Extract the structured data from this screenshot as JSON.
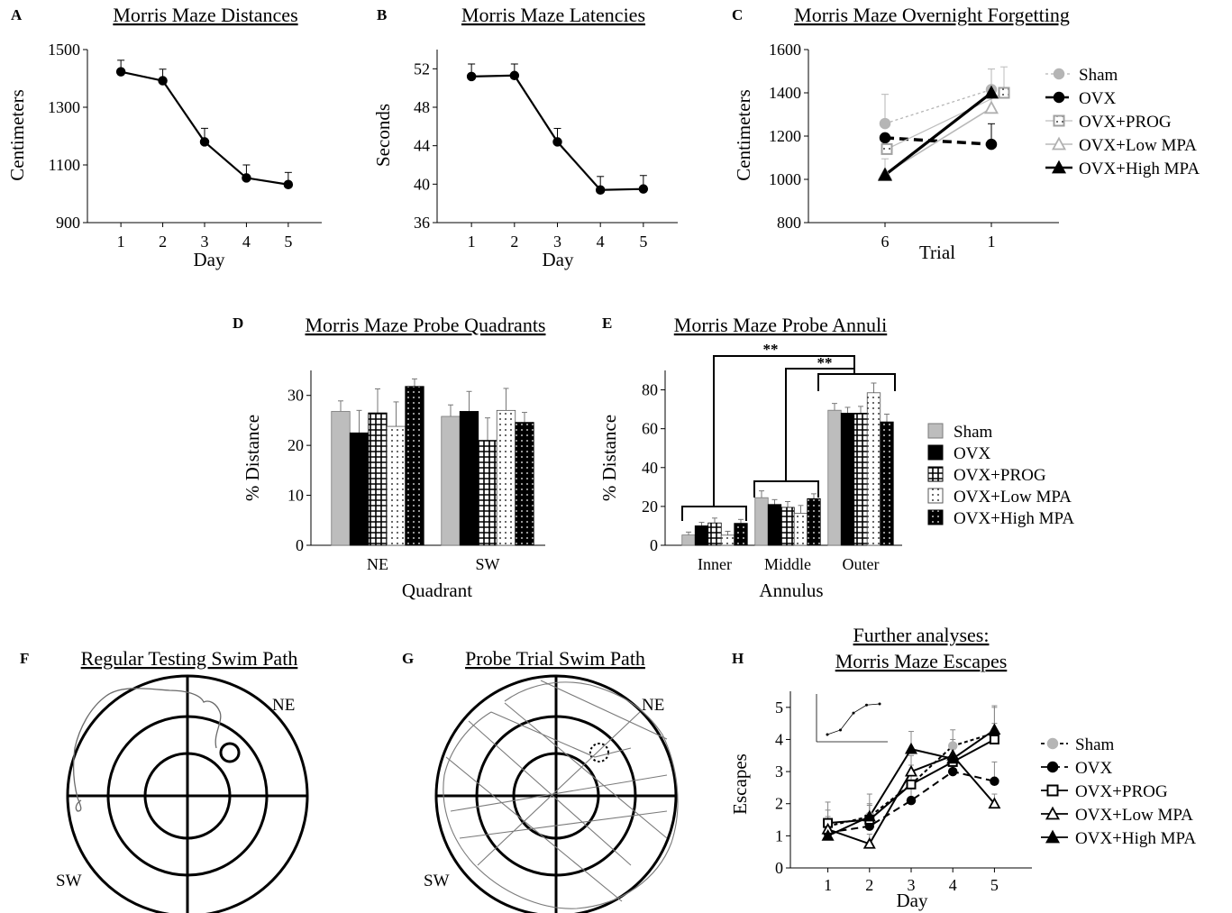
{
  "figure": {
    "colors": {
      "sham": "#b5b5b5",
      "ovx": "#000000",
      "prog": "#ffffff",
      "low": "#ffffff",
      "high": "#000000",
      "grey_line": "#9a9a9a"
    },
    "icons": [
      "filled-circle-marker",
      "open-square-marker",
      "open-triangle-marker",
      "filled-triangle-marker"
    ]
  },
  "chart_data": [
    {
      "id": "A",
      "letter": "A",
      "type": "line",
      "title": "Morris Maze Distances",
      "xlabel": "Day",
      "ylabel": "Centimeters",
      "x": [
        1,
        2,
        3,
        4,
        5
      ],
      "xticks": [
        "1",
        "2",
        "3",
        "4",
        "5"
      ],
      "xlim": [
        0.2,
        5.8
      ],
      "ylim": [
        900,
        1500
      ],
      "yticks": [
        900,
        1100,
        1300,
        1500
      ],
      "series": [
        {
          "values": [
            1423,
            1392,
            1180,
            1055,
            1032
          ],
          "errors": [
            40,
            40,
            47,
            45,
            42
          ]
        }
      ]
    },
    {
      "id": "B",
      "letter": "B",
      "type": "line",
      "title": "Morris Maze Latencies",
      "xlabel": "Day",
      "ylabel": "Seconds",
      "x": [
        1,
        2,
        3,
        4,
        5
      ],
      "xticks": [
        "1",
        "2",
        "3",
        "4",
        "5"
      ],
      "xlim": [
        0.2,
        5.8
      ],
      "ylim": [
        36,
        54
      ],
      "yticks": [
        36,
        40,
        44,
        48,
        52
      ],
      "series": [
        {
          "values": [
            51.2,
            51.3,
            44.4,
            39.4,
            39.5
          ],
          "errors": [
            1.3,
            1.2,
            1.4,
            1.4,
            1.4
          ]
        }
      ]
    },
    {
      "id": "C",
      "letter": "C",
      "type": "line",
      "title": "Morris Maze Overnight Forgetting",
      "xlabel": "Trial",
      "ylabel": "Centimeters",
      "xticks": [
        "6",
        "1"
      ],
      "ylim": [
        800,
        1600
      ],
      "yticks": [
        800,
        1000,
        1200,
        1400,
        1600
      ],
      "series": [
        {
          "name": "Sham",
          "values": [
            1258,
            1415
          ],
          "errors": [
            135,
            95
          ]
        },
        {
          "name": "OVX",
          "values": [
            1192,
            1162
          ],
          "errors": [
            0,
            95
          ]
        },
        {
          "name": "OVX+PROG",
          "values": [
            1140,
            1400
          ],
          "errors": [
            40,
            120
          ]
        },
        {
          "name": "OVX+Low MPA",
          "values": [
            1025,
            1330
          ],
          "errors": [
            70,
            90
          ]
        },
        {
          "name": "OVX+High MPA",
          "values": [
            1020,
            1400
          ],
          "errors": [
            0,
            0
          ]
        }
      ]
    },
    {
      "id": "D",
      "letter": "D",
      "type": "bar",
      "title": "Morris Maze Probe Quadrants",
      "xlabel": "Quadrant",
      "ylabel": "% Distance",
      "categories": [
        "NE",
        "SW"
      ],
      "ylim": [
        0,
        35
      ],
      "yticks": [
        0,
        10,
        20,
        30
      ],
      "series": [
        {
          "values": [
            26.8,
            25.8
          ],
          "errors": [
            2.1,
            2.3
          ]
        },
        {
          "values": [
            22.5,
            26.8
          ],
          "errors": [
            4.5,
            4.0
          ]
        },
        {
          "values": [
            26.5,
            21.0
          ],
          "errors": [
            4.8,
            4.5
          ]
        },
        {
          "values": [
            23.8,
            27.0
          ],
          "errors": [
            4.9,
            4.4
          ]
        },
        {
          "values": [
            31.8,
            24.6
          ],
          "errors": [
            1.5,
            2.0
          ]
        }
      ]
    },
    {
      "id": "E",
      "letter": "E",
      "type": "bar",
      "title": "Morris Maze Probe Annuli",
      "xlabel": "Annulus",
      "ylabel": "% Distance",
      "categories": [
        "Inner",
        "Middle",
        "Outer"
      ],
      "ylim": [
        0,
        90
      ],
      "yticks": [
        0,
        20,
        40,
        60,
        80
      ],
      "annotations": [
        "**",
        "**"
      ],
      "series": [
        {
          "name": "Sham",
          "values": [
            5.3,
            24.5,
            69.5
          ],
          "errors": [
            1.5,
            3.5,
            3.5
          ]
        },
        {
          "name": "OVX",
          "values": [
            10.0,
            21.0,
            68.0
          ],
          "errors": [
            1.8,
            2.5,
            3.0
          ]
        },
        {
          "name": "OVX+PROG",
          "values": [
            11.5,
            19.5,
            68.0
          ],
          "errors": [
            2.5,
            3.0,
            3.5
          ]
        },
        {
          "name": "OVX+Low MPA",
          "values": [
            5.2,
            16.5,
            78.5
          ],
          "errors": [
            2.0,
            4.0,
            5.0
          ]
        },
        {
          "name": "OVX+High MPA",
          "values": [
            11.3,
            24.0,
            63.5
          ],
          "errors": [
            2.0,
            2.5,
            4.0
          ]
        }
      ]
    },
    {
      "id": "H",
      "letter": "H",
      "type": "line",
      "title": "Further analyses:",
      "subtitle": "Morris Maze Escapes",
      "xlabel": "Day",
      "ylabel": "Escapes",
      "x": [
        1,
        2,
        3,
        4,
        5
      ],
      "xticks": [
        "1",
        "2",
        "3",
        "4",
        "5"
      ],
      "xlim": [
        0.1,
        5.9
      ],
      "ylim": [
        0,
        5.5
      ],
      "yticks": [
        0,
        1,
        2,
        3,
        4,
        5
      ],
      "series": [
        {
          "name": "Sham",
          "values": [
            1.3,
            1.6,
            2.6,
            3.8,
            4.2
          ],
          "errors": [
            0.75,
            0.7,
            0.6,
            0.5,
            0.85
          ]
        },
        {
          "name": "OVX",
          "values": [
            1.1,
            1.3,
            2.1,
            3.0,
            2.7
          ],
          "errors": [
            0.4,
            0.4,
            0.5,
            0.4,
            0.6
          ]
        },
        {
          "name": "OVX+PROG",
          "values": [
            1.4,
            1.5,
            2.6,
            3.3,
            4.0
          ],
          "errors": [
            0.4,
            0.45,
            0.45,
            0.5,
            0.5
          ]
        },
        {
          "name": "OVX+Low MPA",
          "values": [
            1.2,
            0.75,
            3.0,
            3.5,
            2.0
          ],
          "errors": [
            0.4,
            0.3,
            0.5,
            0.5,
            0.3
          ]
        },
        {
          "name": "OVX+High MPA",
          "values": [
            1.0,
            1.6,
            3.7,
            3.4,
            4.3
          ],
          "errors": [
            0.3,
            0.4,
            0.55,
            0.5,
            0.7
          ]
        }
      ],
      "inset": {
        "values": [
          1.0,
          1.4,
          2.9,
          3.6,
          3.7
        ]
      }
    }
  ],
  "legend": {
    "sham": "Sham",
    "ovx": "OVX",
    "prog": "OVX+PROG",
    "low": "OVX+Low MPA",
    "high": "OVX+High MPA"
  },
  "swim_paths": {
    "F": {
      "letter": "F",
      "title": "Regular Testing Swim Path",
      "ne": "NE",
      "sw": "SW"
    },
    "G": {
      "letter": "G",
      "title": "Probe Trial Swim Path",
      "ne": "NE",
      "sw": "SW"
    }
  }
}
